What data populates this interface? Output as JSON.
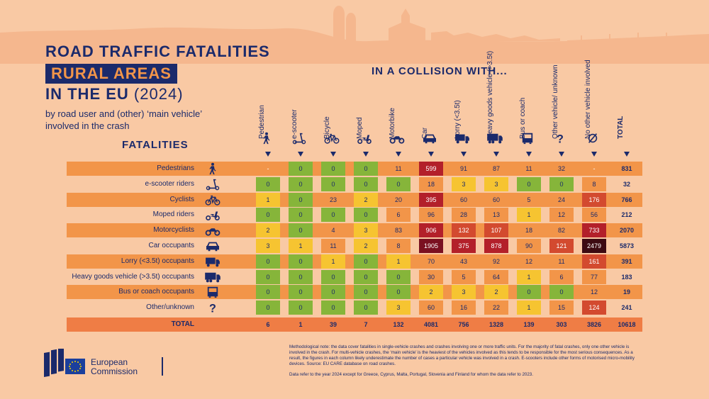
{
  "header": {
    "title_line1": "ROAD TRAFFIC FATALITIES",
    "title_highlight": "RURAL AREAS",
    "title_line3": "IN THE EU",
    "title_year": "(2024)",
    "subtitle": "by road user and (other) ‘main vehicle’ involved in the crash",
    "row_axis_label": "FATALITIES",
    "column_axis_label": "IN A COLLISION WITH..."
  },
  "colors": {
    "background": "#f9c9a4",
    "navy": "#1b2a6b",
    "band_orange": "#f29549",
    "total_band": "#ef7d45",
    "scale": [
      "#86b53a",
      "#f6c431",
      "#f29549",
      "#d34a2f",
      "#b3202a",
      "#7a1021",
      "#3d0a12"
    ]
  },
  "columns": [
    {
      "label": "Pedestrian",
      "icon": "pedestrian-icon"
    },
    {
      "label": "e-scooter",
      "icon": "e-scooter-icon"
    },
    {
      "label": "Bicycle",
      "icon": "bicycle-icon"
    },
    {
      "label": "Moped",
      "icon": "moped-icon"
    },
    {
      "label": "Motorbike",
      "icon": "motorbike-icon"
    },
    {
      "label": "Car",
      "icon": "car-icon"
    },
    {
      "label": "Lorry (<3.5t)",
      "icon": "lorry-icon"
    },
    {
      "label": "Heavy goods vehicle (>3.5t)",
      "icon": "heavy-goods-vehicle-icon"
    },
    {
      "label": "Bus or coach",
      "icon": "bus-icon"
    },
    {
      "label": "Other vehicle/ unknown",
      "icon": "question-mark-icon"
    },
    {
      "label": "No other vehicle involved",
      "icon": "empty-set-icon"
    },
    {
      "label": "TOTAL",
      "icon": ""
    }
  ],
  "footer": {
    "logo_text_line1": "European",
    "logo_text_line2": "Commission",
    "method_note": "Methodological note: the data cover fatalities in single-vehicle crashes and crashes involving one or more traffic units. For the majority of fatal crashes, only one other vehicle is involved in the crash. For multi-vehicle crashes, the ‘main vehicle’ is the heaviest of the vehicles involved as this tends to be responsible for the most serious consequences. As a result, the figures in each column likely underestimate the number of cases a particular vehicle was involved in a crash. E-scooters include other forms of motorised micro-mobility devices. Source: EU CARE database on road crashes.",
    "data_note": "Data refer to the year 2024 except for Greece, Cyprus, Malta, Portugal, Slovenia and Finland for whom the data refer to 2023."
  },
  "chart_data": {
    "type": "table",
    "title": "ROAD TRAFFIC FATALITIES RURAL AREAS IN THE EU (2024)",
    "columns": [
      "Pedestrian",
      "e-scooter",
      "Bicycle",
      "Moped",
      "Motorbike",
      "Car",
      "Lorry (<3.5t)",
      "Heavy goods vehicle (>3.5t)",
      "Bus or coach",
      "Other vehicle/ unknown",
      "No other vehicle involved",
      "TOTAL"
    ],
    "rows": [
      {
        "label": "Pedestrians",
        "icon": "pedestrian-icon",
        "values": [
          "-",
          0,
          0,
          0,
          11,
          599,
          91,
          87,
          11,
          32,
          "-",
          831
        ]
      },
      {
        "label": "e-scooter riders",
        "icon": "e-scooter-icon",
        "values": [
          0,
          0,
          0,
          0,
          0,
          18,
          3,
          3,
          0,
          0,
          8,
          32
        ]
      },
      {
        "label": "Cyclists",
        "icon": "bicycle-icon",
        "values": [
          1,
          0,
          23,
          2,
          20,
          395,
          60,
          60,
          5,
          24,
          176,
          766
        ]
      },
      {
        "label": "Moped riders",
        "icon": "moped-icon",
        "values": [
          0,
          0,
          0,
          0,
          6,
          96,
          28,
          13,
          1,
          12,
          56,
          212
        ]
      },
      {
        "label": "Motorcyclists",
        "icon": "motorbike-icon",
        "values": [
          2,
          0,
          4,
          3,
          83,
          906,
          132,
          107,
          18,
          82,
          733,
          2070
        ]
      },
      {
        "label": "Car occupants",
        "icon": "car-icon",
        "values": [
          3,
          1,
          11,
          2,
          8,
          1905,
          375,
          878,
          90,
          121,
          2479,
          5873
        ]
      },
      {
        "label": "Lorry (<3.5t) occupants",
        "icon": "lorry-icon",
        "values": [
          0,
          0,
          1,
          0,
          1,
          70,
          43,
          92,
          12,
          11,
          161,
          391
        ]
      },
      {
        "label": "Heavy goods vehicle (>3.5t) occupants",
        "icon": "heavy-goods-vehicle-icon",
        "values": [
          0,
          0,
          0,
          0,
          0,
          30,
          5,
          64,
          1,
          6,
          77,
          183
        ]
      },
      {
        "label": "Bus or coach occupants",
        "icon": "bus-icon",
        "values": [
          0,
          0,
          0,
          0,
          0,
          2,
          3,
          2,
          0,
          0,
          12,
          19
        ]
      },
      {
        "label": "Other/unknown",
        "icon": "question-mark-icon",
        "values": [
          0,
          0,
          0,
          0,
          3,
          60,
          16,
          22,
          1,
          15,
          124,
          241
        ]
      }
    ],
    "totals": {
      "label": "TOTAL",
      "values": [
        6,
        1,
        39,
        7,
        132,
        4081,
        756,
        1328,
        139,
        303,
        3826,
        10618
      ]
    }
  }
}
